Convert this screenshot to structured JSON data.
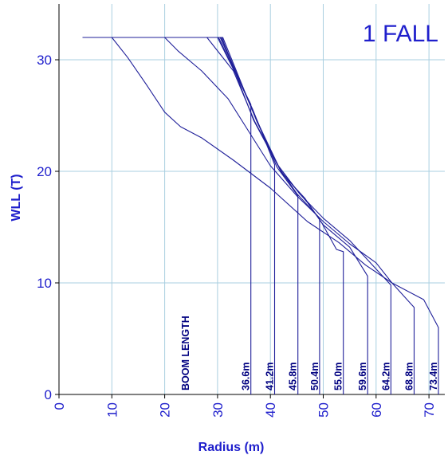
{
  "chart_data": {
    "type": "line",
    "title": "1 FALL",
    "xlabel": "Radius (m)",
    "ylabel": "WLL (T)",
    "xlim": [
      0,
      73
    ],
    "ylim": [
      0,
      35
    ],
    "x_ticks": [
      "0",
      "10",
      "20",
      "30",
      "40",
      "50",
      "60",
      "70"
    ],
    "y_ticks": [
      "0",
      "10",
      "20",
      "30"
    ],
    "x_tick_values": [
      0,
      10,
      20,
      30,
      40,
      50,
      60,
      70
    ],
    "y_tick_values": [
      0,
      10,
      20,
      30
    ],
    "grid": true,
    "legend": "none",
    "line_color": "#1f1f99",
    "grid_color": "#a9cfe0",
    "text_color": "#1f1fcc",
    "boom_annotation": "BOOM  LENGTH",
    "series": [
      {
        "name": "36.6m",
        "x": [
          4.5,
          30.0,
          36.3,
          36.3
        ],
        "y": [
          32.0,
          32.0,
          26.0,
          0
        ]
      },
      {
        "name": "41.2m",
        "x": [
          4.5,
          30.2,
          36.6,
          40.8,
          40.8
        ],
        "y": [
          32.0,
          32.0,
          25.6,
          20.6,
          0
        ]
      },
      {
        "name": "45.8m",
        "x": [
          4.5,
          30.5,
          36.9,
          41.2,
          45.2,
          45.2
        ],
        "y": [
          32.0,
          32.0,
          25.2,
          20.4,
          17.8,
          0
        ]
      },
      {
        "name": "50.4m",
        "x": [
          4.5,
          30.7,
          37.2,
          41.8,
          45.0,
          49.3,
          49.3
        ],
        "y": [
          32.0,
          32.0,
          24.8,
          20.2,
          18.0,
          15.8,
          0
        ]
      },
      {
        "name": "55.0m",
        "x": [
          4.5,
          31.0,
          37.5,
          42.2,
          46.5,
          49.7,
          52.5,
          53.8,
          53.8
        ],
        "y": [
          32.0,
          32.0,
          24.4,
          19.8,
          17.6,
          15.4,
          13.0,
          12.8,
          0
        ]
      },
      {
        "name": "59.6m",
        "x": [
          4.5,
          30.8,
          36.8,
          42.0,
          47.0,
          50.0,
          55.0,
          58.4,
          58.4
        ],
        "y": [
          32.0,
          32.0,
          24.6,
          20.0,
          17.2,
          15.2,
          13.2,
          10.6,
          0
        ]
      },
      {
        "name": "64.2m",
        "x": [
          4.5,
          28.0,
          33.0,
          37.0,
          41.5,
          45.5,
          50.0,
          55.0,
          62.8,
          62.8
        ],
        "y": [
          32.0,
          32.0,
          29.0,
          24.5,
          20.5,
          18.0,
          15.8,
          13.8,
          9.8,
          0
        ]
      },
      {
        "name": "68.8m",
        "x": [
          4.5,
          20.0,
          22.5,
          27.0,
          32.0,
          36.0,
          40.0,
          45.0,
          50.0,
          55.0,
          60.0,
          63.0,
          67.2,
          67.2
        ],
        "y": [
          32.0,
          32.0,
          30.8,
          29.0,
          26.5,
          23.5,
          20.5,
          17.8,
          15.5,
          13.5,
          11.8,
          10.0,
          7.8,
          0
        ]
      },
      {
        "name": "73.4m",
        "x": [
          4.5,
          10.0,
          13.0,
          16.5,
          20.0,
          23.0,
          27.0,
          33.0,
          40.0,
          47.0,
          53.0,
          58.0,
          63.0,
          69.0,
          71.8,
          71.8
        ],
        "y": [
          32.0,
          32.0,
          30.2,
          27.8,
          25.3,
          24.0,
          23.0,
          21.0,
          18.5,
          15.5,
          13.6,
          11.6,
          10.0,
          8.5,
          6.0,
          0
        ]
      }
    ]
  }
}
